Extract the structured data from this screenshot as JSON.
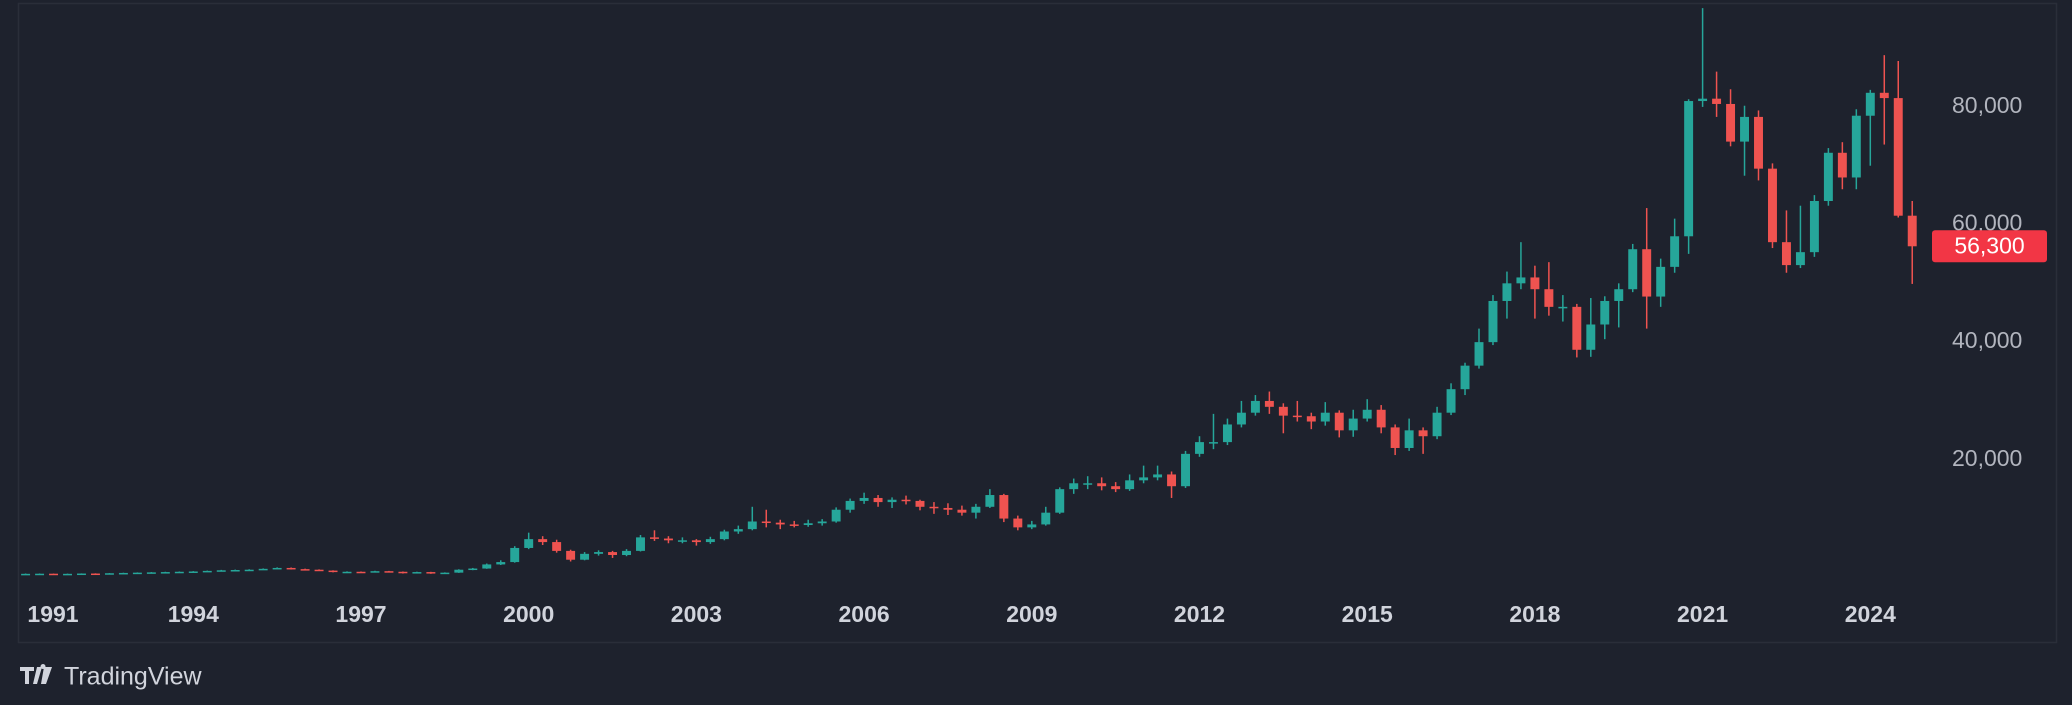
{
  "chart_data": {
    "type": "candlestick",
    "x": [
      1991,
      1991.25,
      1991.5,
      1991.75,
      1992,
      1992.25,
      1992.5,
      1992.75,
      1993,
      1993.25,
      1993.5,
      1993.75,
      1994,
      1994.25,
      1994.5,
      1994.75,
      1995,
      1995.25,
      1995.5,
      1995.75,
      1996,
      1996.25,
      1996.5,
      1996.75,
      1997,
      1997.25,
      1997.5,
      1997.75,
      1998,
      1998.25,
      1998.5,
      1998.75,
      1999,
      1999.25,
      1999.5,
      1999.75,
      2000,
      2000.25,
      2000.5,
      2000.75,
      2001,
      2001.25,
      2001.5,
      2001.75,
      2002,
      2002.25,
      2002.5,
      2002.75,
      2003,
      2003.25,
      2003.5,
      2003.75,
      2004,
      2004.25,
      2004.5,
      2004.75,
      2005,
      2005.25,
      2005.5,
      2005.75,
      2006,
      2006.25,
      2006.5,
      2006.75,
      2007,
      2007.25,
      2007.5,
      2007.75,
      2008,
      2008.25,
      2008.5,
      2008.75,
      2009,
      2009.25,
      2009.5,
      2009.75,
      2010,
      2010.25,
      2010.5,
      2010.75,
      2011,
      2011.25,
      2011.5,
      2011.75,
      2012,
      2012.25,
      2012.5,
      2012.75,
      2013,
      2013.25,
      2013.5,
      2013.75,
      2014,
      2014.25,
      2014.5,
      2014.75,
      2015,
      2015.25,
      2015.5,
      2015.75,
      2016,
      2016.25,
      2016.5,
      2016.75,
      2017,
      2017.25,
      2017.5,
      2017.75,
      2018,
      2018.25,
      2018.5,
      2018.75,
      2019,
      2019.25,
      2019.5,
      2019.75,
      2020,
      2020.25,
      2020.5,
      2020.75,
      2021,
      2021.25,
      2021.5,
      2021.75,
      2022,
      2022.25,
      2022.5,
      2022.75,
      2023,
      2023.25,
      2023.5,
      2023.75,
      2024,
      2024.25,
      2024.5,
      2024.75
    ],
    "open": [
      580,
      600,
      620,
      580,
      600,
      650,
      620,
      700,
      750,
      800,
      850,
      900,
      950,
      1000,
      1100,
      1200,
      1250,
      1300,
      1450,
      1600,
      1400,
      1300,
      1150,
      900,
      950,
      900,
      1050,
      950,
      700,
      900,
      650,
      800,
      1300,
      1500,
      2200,
      2600,
      5000,
      6500,
      6000,
      4500,
      3000,
      4000,
      4300,
      3800,
      4500,
      6800,
      6600,
      6300,
      6300,
      6000,
      6500,
      7800,
      8200,
      9500,
      9300,
      9000,
      8900,
      9200,
      9500,
      11500,
      13000,
      13500,
      12800,
      13200,
      13000,
      12000,
      11800,
      11500,
      11000,
      12000,
      14000,
      10000,
      8500,
      9000,
      11000,
      15000,
      16000,
      16000,
      15500,
      15000,
      16500,
      17000,
      17500,
      15500,
      21000,
      23000,
      23000,
      26000,
      28000,
      30000,
      29000,
      27500,
      27400,
      26500,
      28000,
      25000,
      27000,
      28500,
      25500,
      22000,
      25000,
      24000,
      28000,
      32000,
      36000,
      40000,
      47000,
      50000,
      51000,
      49000,
      46000,
      46000,
      38700,
      43000,
      47000,
      49000,
      55800,
      47750,
      52800,
      58000,
      81000,
      81400,
      80500,
      74100,
      78300,
      69500,
      57000,
      53100,
      55300,
      64000,
      72200,
      68000,
      78500,
      82400,
      81500,
      61500
    ],
    "high": [
      650,
      660,
      640,
      630,
      680,
      690,
      730,
      790,
      840,
      900,
      950,
      1000,
      1060,
      1150,
      1270,
      1320,
      1380,
      1520,
      1700,
      1680,
      1480,
      1360,
      1200,
      1020,
      1000,
      1120,
      1100,
      1000,
      960,
      940,
      850,
      1380,
      1600,
      2350,
      2900,
      5300,
      7600,
      7000,
      6400,
      4700,
      4300,
      4600,
      4500,
      4800,
      7200,
      8000,
      7000,
      6800,
      6500,
      6900,
      8100,
      8800,
      12000,
      11500,
      9800,
      9600,
      9800,
      9900,
      11900,
      13400,
      14400,
      14000,
      13600,
      13900,
      13200,
      12800,
      12600,
      12200,
      12500,
      15000,
      14200,
      10500,
      9600,
      12000,
      15300,
      16800,
      17200,
      17000,
      16200,
      17500,
      19000,
      19000,
      18000,
      21500,
      24000,
      27800,
      27000,
      30000,
      31000,
      31600,
      29600,
      30000,
      28000,
      29800,
      28400,
      28500,
      30300,
      29300,
      26000,
      27000,
      25500,
      29000,
      33000,
      36500,
      42300,
      48000,
      52000,
      57000,
      53000,
      53600,
      48000,
      46500,
      47500,
      47800,
      50000,
      56700,
      62800,
      54200,
      61000,
      81300,
      96800,
      86000,
      83000,
      80200,
      79400,
      70400,
      62400,
      63200,
      65000,
      73000,
      74000,
      79600,
      82900,
      88800,
      87800,
      64000
    ],
    "low": [
      550,
      570,
      550,
      550,
      580,
      590,
      600,
      680,
      720,
      770,
      820,
      870,
      910,
      960,
      1060,
      1150,
      1180,
      1250,
      1400,
      1330,
      1220,
      1080,
      850,
      850,
      850,
      860,
      900,
      650,
      660,
      600,
      600,
      760,
      1220,
      1450,
      2100,
      2500,
      4800,
      5500,
      4200,
      2700,
      2900,
      3700,
      3300,
      3600,
      4400,
      6200,
      5800,
      5800,
      5400,
      5700,
      6300,
      7400,
      8000,
      8500,
      8200,
      8500,
      8600,
      8800,
      9300,
      11000,
      12500,
      12000,
      11800,
      12400,
      11400,
      10800,
      10600,
      10500,
      10000,
      11800,
      9400,
      8000,
      8200,
      8800,
      10800,
      14200,
      15000,
      14800,
      14500,
      14700,
      16000,
      16500,
      13500,
      15200,
      20500,
      21800,
      22500,
      25500,
      27500,
      27800,
      24500,
      26500,
      25200,
      25800,
      23800,
      23900,
      26500,
      24500,
      20800,
      21500,
      21000,
      23500,
      27600,
      31000,
      35500,
      39500,
      44000,
      49000,
      44000,
      44500,
      43500,
      37400,
      37500,
      40500,
      42500,
      48500,
      42300,
      46000,
      51800,
      55000,
      80000,
      78300,
      73300,
      68300,
      67500,
      56000,
      51800,
      52600,
      54500,
      63200,
      66000,
      66000,
      70000,
      73600,
      61200,
      49900
    ],
    "close": [
      600,
      620,
      580,
      600,
      650,
      620,
      700,
      750,
      800,
      850,
      900,
      950,
      1000,
      1100,
      1200,
      1250,
      1300,
      1450,
      1600,
      1400,
      1300,
      1150,
      900,
      950,
      900,
      1050,
      950,
      700,
      900,
      650,
      800,
      1300,
      1500,
      2200,
      2600,
      5000,
      6500,
      6000,
      4500,
      3000,
      4000,
      4300,
      3800,
      4500,
      6800,
      6600,
      6300,
      6300,
      6000,
      6500,
      7800,
      8200,
      9500,
      9300,
      9000,
      8900,
      9200,
      9500,
      11500,
      13000,
      13500,
      12800,
      13200,
      13000,
      12000,
      11800,
      11500,
      11000,
      12000,
      14000,
      10000,
      8500,
      9000,
      11000,
      15000,
      16000,
      16000,
      15500,
      15000,
      16500,
      17000,
      17500,
      15500,
      21000,
      23000,
      23000,
      26000,
      28000,
      30000,
      29000,
      27500,
      27400,
      26500,
      28000,
      25000,
      27000,
      28500,
      25500,
      22000,
      25000,
      24000,
      28000,
      32000,
      36000,
      40000,
      47000,
      50000,
      51000,
      49000,
      46000,
      46000,
      38700,
      43000,
      47000,
      49000,
      55800,
      47750,
      52800,
      58000,
      81000,
      81400,
      80500,
      74100,
      78300,
      69500,
      57000,
      53100,
      55300,
      64000,
      72200,
      68000,
      78500,
      82400,
      81500,
      61500,
      56300
    ],
    "up_color": "#26a69a",
    "down_color": "#ef5350",
    "xlim": [
      1990.9,
      2025.05
    ],
    "xticks": [
      1991,
      1994,
      1997,
      2000,
      2003,
      2006,
      2009,
      2012,
      2015,
      2018,
      2021,
      2024
    ],
    "ylim": [
      -3000,
      97500
    ],
    "yticks": [
      {
        "value": 20000,
        "label": "20,000"
      },
      {
        "value": 40000,
        "label": "40,000"
      },
      {
        "value": 60000,
        "label": "60,000"
      },
      {
        "value": 80000,
        "label": "80,000"
      }
    ],
    "grid": false,
    "last_price": {
      "value": 56300,
      "label": "56,300"
    },
    "last_price_color": "#f23645"
  },
  "footer": {
    "logo_text": "TradingView"
  }
}
